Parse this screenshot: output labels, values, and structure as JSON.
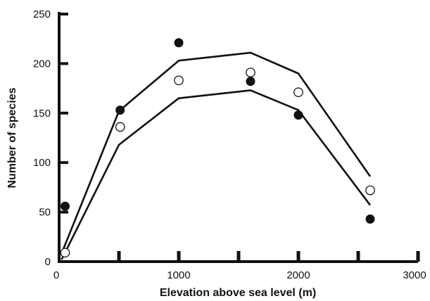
{
  "chart_data": {
    "type": "scatter",
    "title": "",
    "xlabel": "Elevation above sea level (m)",
    "ylabel": "Number of species",
    "xlim": [
      0,
      3000
    ],
    "ylim": [
      0,
      250
    ],
    "x_ticks": [
      0,
      500,
      1000,
      1500,
      2000,
      2500,
      3000
    ],
    "x_tick_labels": [
      "0",
      "",
      "1000",
      "",
      "2000",
      "",
      "3000"
    ],
    "y_ticks": [
      0,
      50,
      100,
      150,
      200,
      250
    ],
    "y_tick_labels": [
      "0",
      "50",
      "100",
      "150",
      "200",
      "250"
    ],
    "grid": false,
    "legend": "none",
    "colors": {
      "ink": "#111111",
      "open_fill": "#ffffff"
    },
    "series": [
      {
        "marker": "filled-circle",
        "points": [
          {
            "x": 50,
            "y": 56
          },
          {
            "x": 510,
            "y": 153
          },
          {
            "x": 1000,
            "y": 221
          },
          {
            "x": 1600,
            "y": 182
          },
          {
            "x": 2000,
            "y": 148
          },
          {
            "x": 2600,
            "y": 43
          }
        ]
      },
      {
        "marker": "open-circle",
        "points": [
          {
            "x": 50,
            "y": 9
          },
          {
            "x": 510,
            "y": 136
          },
          {
            "x": 1000,
            "y": 183
          },
          {
            "x": 1600,
            "y": 191
          },
          {
            "x": 2000,
            "y": 171
          },
          {
            "x": 2600,
            "y": 72
          }
        ]
      },
      {
        "marker": "line",
        "points": [
          {
            "x": 20,
            "y": 8
          },
          {
            "x": 500,
            "y": 152
          },
          {
            "x": 1000,
            "y": 203
          },
          {
            "x": 1600,
            "y": 211
          },
          {
            "x": 2000,
            "y": 190
          },
          {
            "x": 2600,
            "y": 86
          }
        ]
      },
      {
        "marker": "line",
        "points": [
          {
            "x": 20,
            "y": 2
          },
          {
            "x": 500,
            "y": 118
          },
          {
            "x": 1000,
            "y": 165
          },
          {
            "x": 1600,
            "y": 173
          },
          {
            "x": 2000,
            "y": 153
          },
          {
            "x": 2600,
            "y": 57
          }
        ]
      }
    ]
  }
}
